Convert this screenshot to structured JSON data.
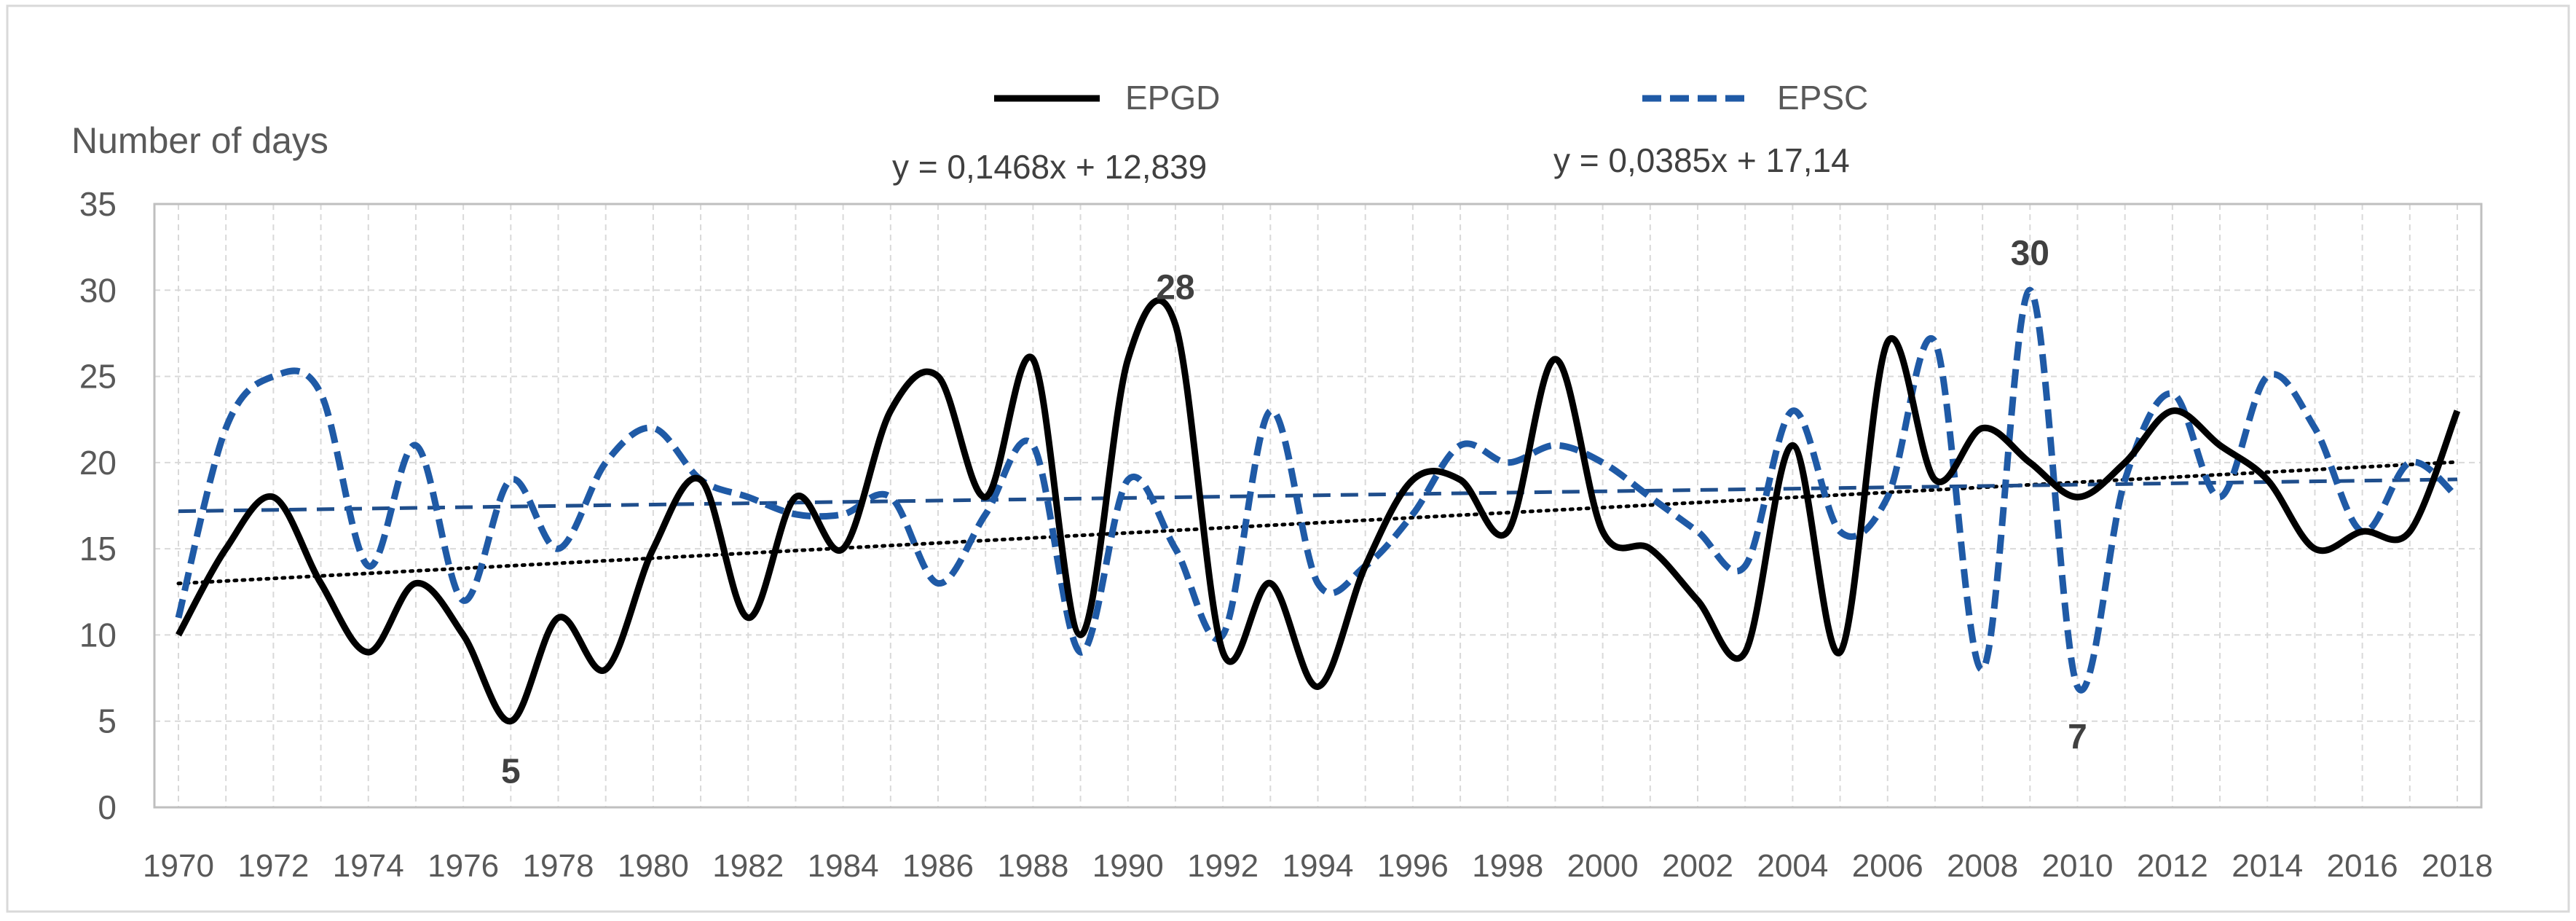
{
  "chart_data": {
    "type": "line",
    "title": "",
    "ylabel": "Number of days",
    "xlabel": "",
    "ylim": [
      0,
      35
    ],
    "yticks": [
      "0",
      "5",
      "10",
      "15",
      "20",
      "25",
      "30",
      "35"
    ],
    "xlim": [
      1970,
      2018
    ],
    "xtick_labels": [
      "1970",
      "1972",
      "1974",
      "1976",
      "1978",
      "1980",
      "1982",
      "1984",
      "1986",
      "1988",
      "1990",
      "1992",
      "1994",
      "1996",
      "1998",
      "2000",
      "2002",
      "2004",
      "2006",
      "2008",
      "2010",
      "2012",
      "2014",
      "2016",
      "2018"
    ],
    "grid": true,
    "legend_position": "top",
    "x": [
      1970,
      1971,
      1972,
      1973,
      1974,
      1975,
      1976,
      1977,
      1978,
      1979,
      1980,
      1981,
      1982,
      1983,
      1984,
      1985,
      1986,
      1987,
      1988,
      1989,
      1990,
      1991,
      1992,
      1993,
      1994,
      1995,
      1996,
      1997,
      1998,
      1999,
      2000,
      2001,
      2002,
      2003,
      2004,
      2005,
      2006,
      2007,
      2008,
      2009,
      2010,
      2011,
      2012,
      2013,
      2014,
      2015,
      2016,
      2017,
      2018
    ],
    "series": [
      {
        "name": "EPGD",
        "color": "#000000",
        "style": "solid",
        "values": [
          10,
          15,
          18,
          13,
          9,
          13,
          10,
          5,
          11,
          8,
          15,
          19,
          11,
          18,
          15,
          23,
          25,
          18,
          26,
          10,
          26,
          28,
          9,
          13,
          7,
          14,
          19,
          19,
          16,
          26,
          16,
          15,
          12,
          9,
          21,
          9,
          27,
          19,
          22,
          20,
          18,
          20,
          23,
          21,
          19,
          15,
          16,
          16,
          23
        ],
        "trendline": {
          "equation": "y = 0,1468x + 12,839",
          "slope": 0.1468,
          "intercept": 12.839,
          "style": "dotted",
          "color": "#000000"
        }
      },
      {
        "name": "EPSC",
        "color": "#1f5aa6",
        "style": "dashed",
        "values": [
          11,
          22,
          25,
          24,
          14,
          21,
          12,
          19,
          15,
          20,
          22,
          19,
          18,
          17,
          17,
          18,
          13,
          17,
          21,
          9,
          19,
          15,
          10,
          23,
          13,
          14,
          17,
          21,
          20,
          21,
          20,
          18,
          16,
          14,
          23,
          16,
          18,
          27,
          8,
          30,
          7,
          19,
          24,
          18,
          25,
          22,
          16,
          20,
          18
        ],
        "trendline": {
          "equation": "y = 0,0385x + 17,14",
          "slope": 0.0385,
          "intercept": 17.14,
          "style": "long-dashed",
          "color": "#1f4e8c"
        }
      }
    ],
    "annotations": [
      {
        "text": "5",
        "x": 1977,
        "y": 5,
        "position": "below"
      },
      {
        "text": "28",
        "x": 1991,
        "y": 28,
        "position": "above"
      },
      {
        "text": "30",
        "x": 2009,
        "y": 30,
        "position": "above"
      },
      {
        "text": "7",
        "x": 2010,
        "y": 7,
        "position": "below"
      }
    ]
  }
}
